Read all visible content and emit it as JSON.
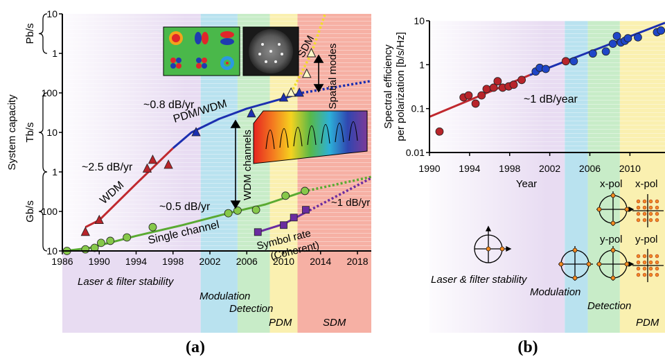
{
  "colors": {
    "wdm": "#c0282e",
    "pdm_wdm": "#1c2fb0",
    "single": "#5aaa32",
    "symbol": "#6a2ca0",
    "sdm": "#f2dc2a",
    "marker_red": "#b8242a",
    "marker_blue": "#1f46c8",
    "marker_green": "#86c84a",
    "marker_purple": "#6a2ca0",
    "axis": "#000000"
  },
  "chart_data": [
    {
      "type": "scatter",
      "panel_label": "(a)",
      "title": "",
      "xlabel": "",
      "ylabel": "System capacity",
      "yscale": "log",
      "xlim": [
        1986,
        2019.5
      ],
      "ylim_gbps": [
        10,
        10000000
      ],
      "x_ticks": [
        1986,
        1990,
        1994,
        1998,
        2002,
        2006,
        2010,
        2014,
        2018
      ],
      "y_tick_labels": [
        {
          "value_gbps": 10,
          "label": "10"
        },
        {
          "value_gbps": 100,
          "label": "100"
        },
        {
          "value_gbps": 1000,
          "label": "1"
        },
        {
          "value_gbps": 10000,
          "label": "10"
        },
        {
          "value_gbps": 100000,
          "label": "100"
        },
        {
          "value_gbps": 1000000,
          "label": "1"
        },
        {
          "value_gbps": 10000000,
          "label": "10"
        }
      ],
      "unit_groups": [
        {
          "label": "Gb/s",
          "from_gbps": 10,
          "to_gbps": 1000
        },
        {
          "label": "Tb/s",
          "from_gbps": 1000,
          "to_gbps": 100000
        },
        {
          "label": "Pb/s",
          "from_gbps": 1000000,
          "to_gbps": 10000000
        }
      ],
      "eras": [
        {
          "name": "Laser & filter stability",
          "from": 1986,
          "to": 2001,
          "color": "#e8dcf2"
        },
        {
          "name": "Modulation",
          "from": 2001,
          "to": 2005,
          "color": "#b9e2ef"
        },
        {
          "name": "Detection",
          "from": 2005,
          "to": 2008.5,
          "color": "#c8ecc8"
        },
        {
          "name": "PDM",
          "from": 2008.5,
          "to": 2011.5,
          "color": "#faf0b0"
        },
        {
          "name": "SDM",
          "from": 2011.5,
          "to": 2019.5,
          "color": "#f6b0a4"
        }
      ],
      "series": [
        {
          "name": "WDM",
          "marker": "triangle",
          "color_key": "wdm",
          "x": [
            1988.5,
            1990,
            1995.2,
            1995.8,
            1997.5
          ],
          "y": [
            30,
            60,
            1200,
            2000,
            1500
          ]
        },
        {
          "name": "PDM/WDM",
          "marker": "triangle",
          "color_key": "pdm_wdm",
          "x": [
            2000.5,
            2006.5,
            2010,
            2011.7
          ],
          "y": [
            10000,
            30000,
            75000,
            100000
          ]
        },
        {
          "name": "Single channel",
          "marker": "circle",
          "color_key": "single",
          "x": [
            1986.5,
            1988.5,
            1989.5,
            1990.2,
            1991.2,
            1993,
            1995.8,
            2004,
            2005,
            2007,
            2010.2,
            2012.3
          ],
          "y": [
            10,
            11,
            12,
            16,
            18,
            22,
            40,
            90,
            105,
            110,
            250,
            330
          ]
        },
        {
          "name": "Symbol rate (Coherent)",
          "marker": "square",
          "color_key": "symbol",
          "x": [
            2007.2,
            2010,
            2011.1,
            2012.4
          ],
          "y": [
            30,
            45,
            70,
            110
          ]
        },
        {
          "name": "SDM",
          "marker": "triangle-open",
          "color_key": "sdm",
          "x": [
            2010.8,
            2012.5,
            2013
          ],
          "y": [
            100000,
            300000,
            1000000
          ]
        }
      ],
      "trend_lines": [
        {
          "series": "WDM",
          "label": "~2.5 dB/yr",
          "color_key": "wdm",
          "style": "solid",
          "points": [
            [
              1988.5,
              40
            ],
            [
              1990,
              60
            ],
            [
              1994,
              500
            ],
            [
              1998,
              4000
            ]
          ]
        },
        {
          "series": "PDM/WDM",
          "label": "~0.8 dB/yr",
          "color_key": "pdm_wdm",
          "style": "solid",
          "points": [
            [
              1998,
              4000
            ],
            [
              2000,
              10000
            ],
            [
              2003,
              22000
            ],
            [
              2006,
              40000
            ],
            [
              2010,
              73000
            ],
            [
              2012,
              100000
            ]
          ]
        },
        {
          "series": "PDM/WDM",
          "color_key": "pdm_wdm",
          "style": "dotted",
          "points": [
            [
              2012,
              100000
            ],
            [
              2019.5,
              200000
            ]
          ]
        },
        {
          "series": "Single channel",
          "label": "~0.5 dB/yr",
          "color_key": "single",
          "style": "solid",
          "points": [
            [
              1986.3,
              10
            ],
            [
              1989,
              12
            ],
            [
              1994,
              24
            ],
            [
              1999,
              45
            ],
            [
              2004,
              90
            ],
            [
              2008,
              150
            ],
            [
              2012.2,
              320
            ]
          ]
        },
        {
          "series": "Single channel",
          "color_key": "single",
          "style": "dotted",
          "points": [
            [
              2012.2,
              320
            ],
            [
              2019.5,
              750
            ]
          ]
        },
        {
          "series": "Symbol rate (Coherent)",
          "label": "~1 dB/yr",
          "color_key": "symbol",
          "style": "solid",
          "points": [
            [
              2007.2,
              30
            ],
            [
              2010,
              48
            ],
            [
              2012.4,
              95
            ]
          ]
        },
        {
          "series": "Symbol rate (Coherent)",
          "color_key": "symbol",
          "style": "dotted",
          "points": [
            [
              2012.4,
              95
            ],
            [
              2019.5,
              700
            ]
          ]
        },
        {
          "series": "SDM",
          "color_key": "sdm",
          "style": "dotted",
          "points": [
            [
              2010.8,
              100000
            ],
            [
              2013,
              1000000
            ],
            [
              2014.5,
              10000000
            ]
          ]
        }
      ],
      "annotations": {
        "wdm_rate": "~2.5 dB/yr",
        "wdm_label": "WDM",
        "pdm_rate": "~0.8 dB/yr",
        "pdm_label": "PDM/WDM",
        "single_rate": "~0.5 dB/yr",
        "single_label": "Single channel",
        "symbol_rate": "~1 dB/yr",
        "symbol_label_line1": "Symbol rate",
        "symbol_label_line2": "(Coherent)",
        "sdm_label": "SDM",
        "spatial_modes": "Spatial modes",
        "wdm_channels": "WDM channels"
      }
    },
    {
      "type": "scatter",
      "panel_label": "(b)",
      "title": "",
      "xlabel": "Year",
      "ylabel_line1": "Spectral efficiency",
      "ylabel_line2": "per polarization [b/s/Hz]",
      "yscale": "log",
      "xlim": [
        1990,
        2013.5
      ],
      "ylim": [
        0.01,
        10
      ],
      "x_ticks": [
        1990,
        1994,
        1998,
        2002,
        2006,
        2010
      ],
      "y_tick_labels": [
        {
          "value": 10,
          "label": "10"
        },
        {
          "value": 1,
          "label": "1"
        },
        {
          "value": 0.1,
          "label": "0.1"
        },
        {
          "value": 0.01,
          "label": "0.01"
        }
      ],
      "eras": [
        {
          "name": "Laser & filter stability",
          "from": 1990,
          "to": 2003.5,
          "color": "#e8dcf2"
        },
        {
          "name": "Modulation",
          "from": 2003.5,
          "to": 2005.8,
          "color": "#b9e2ef"
        },
        {
          "name": "Detection",
          "from": 2005.8,
          "to": 2009,
          "color": "#c8ecc8"
        },
        {
          "name": "PDM",
          "from": 2009,
          "to": 2013.5,
          "color": "#faf0b0"
        }
      ],
      "series": [
        {
          "name": "red",
          "marker": "circle",
          "color_key": "marker_red",
          "x": [
            1991,
            1993.4,
            1993.9,
            1994.6,
            1995.2,
            1995.7,
            1996.4,
            1996.8,
            1997.3,
            1997.9,
            1998.4,
            1999.2,
            2003.6
          ],
          "y": [
            0.03,
            0.18,
            0.2,
            0.13,
            0.2,
            0.28,
            0.3,
            0.42,
            0.3,
            0.32,
            0.35,
            0.45,
            1.2
          ]
        },
        {
          "name": "blue",
          "marker": "circle",
          "color_key": "marker_blue",
          "x": [
            2000.6,
            2001,
            2001.6,
            2004.4,
            2006.3,
            2007.6,
            2008.3,
            2008.7,
            2009.1,
            2009.5,
            2009.8,
            2010.8,
            2012.7,
            2013.1
          ],
          "y": [
            0.7,
            0.85,
            0.8,
            1.2,
            1.8,
            2.0,
            3.0,
            4.5,
            3.2,
            3.5,
            4.0,
            4.2,
            5.5,
            6.0
          ]
        }
      ],
      "trend_lines": [
        {
          "series": "red",
          "label": "~1 dB/year",
          "color_key": "wdm",
          "style": "solid",
          "points": [
            [
              1990,
              0.065
            ],
            [
              2000,
              0.58
            ]
          ]
        },
        {
          "series": "blue",
          "color_key": "pdm_wdm",
          "style": "solid",
          "points": [
            [
              2000,
              0.58
            ],
            [
              2013.5,
              9.0
            ]
          ]
        }
      ],
      "annotations": {
        "rate": "~1 dB/year",
        "xpol_1": "x-pol",
        "xpol_2": "x-pol",
        "ypol_1": "y-pol",
        "ypol_2": "y-pol"
      }
    }
  ]
}
